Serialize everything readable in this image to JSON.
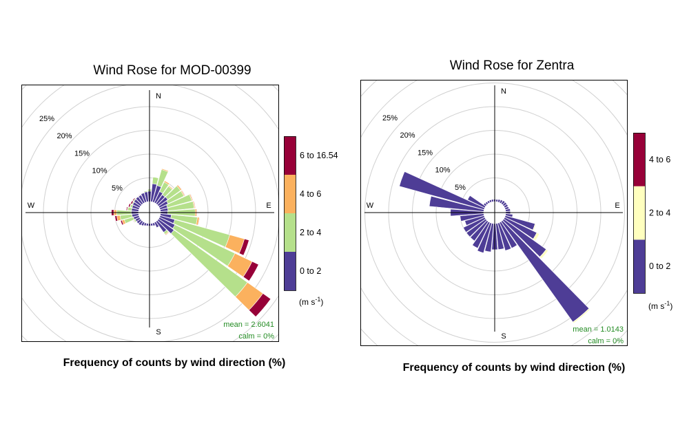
{
  "chart_data": [
    {
      "type": "windrose",
      "title": "Wind Rose for MOD-00399",
      "xlabel": "Frequency of counts by wind direction (%)",
      "compass": [
        "N",
        "E",
        "S",
        "W"
      ],
      "grid_labels": [
        "5%",
        "10%",
        "15%",
        "20%",
        "25%"
      ],
      "grid_values": [
        5,
        10,
        15,
        20,
        25,
        30,
        35
      ],
      "units": "(m s",
      "units_exp": "-1",
      "units_close": ")",
      "mean_text": "mean = 2.6041",
      "calm_text": "calm = 0%",
      "legend": {
        "bins": [
          "0 to 2",
          "2 to 4",
          "4 to 6",
          "6 to 16.54"
        ],
        "colors": [
          "#4e3d96",
          "#b5e08b",
          "#fbb15e",
          "#970038"
        ]
      },
      "directions": [
        0,
        10,
        20,
        30,
        40,
        50,
        60,
        70,
        80,
        90,
        100,
        110,
        120,
        130,
        140,
        150,
        160,
        170,
        180,
        190,
        200,
        210,
        220,
        230,
        240,
        250,
        260,
        270,
        280,
        290,
        300,
        310,
        320,
        330,
        340,
        350
      ],
      "series": [
        {
          "name": "0 to 2",
          "values": [
            2.2,
            3.8,
            3.6,
            2.6,
            2.3,
            2.4,
            2.0,
            1.6,
            1.6,
            1.5,
            2.3,
            3.2,
            3.6,
            4.0,
            2.8,
            1.2,
            0.6,
            0.5,
            0.5,
            0.5,
            0.6,
            0.8,
            1.0,
            1.0,
            1.0,
            1.2,
            1.4,
            1.5,
            1.5,
            1.5,
            1.6,
            1.7,
            1.8,
            1.8,
            2.0,
            2.1
          ]
        },
        {
          "name": "2 to 4",
          "values": [
            0.4,
            1.4,
            3.5,
            2.2,
            2.2,
            3.3,
            3.7,
            5.3,
            5.5,
            5.8,
            5.5,
            12.0,
            14.0,
            19.0,
            0.5,
            0.1,
            0.0,
            0.0,
            0.0,
            0.0,
            0.0,
            0.0,
            0.0,
            0.0,
            0.3,
            2.0,
            2.5,
            3.1,
            0.8,
            0.4,
            0.2,
            0.2,
            0.1,
            0.1,
            0.1,
            0.2
          ]
        },
        {
          "name": "4 to 6",
          "values": [
            0.0,
            0.0,
            0.2,
            0.3,
            0.2,
            0.3,
            0.2,
            0.2,
            0.2,
            0.3,
            0.4,
            3.2,
            4.0,
            4.0,
            0.2,
            0.0,
            0.0,
            0.0,
            0.0,
            0.0,
            0.0,
            0.0,
            0.0,
            0.0,
            0.1,
            0.5,
            0.7,
            0.6,
            0.1,
            0.1,
            0.0,
            0.0,
            0.0,
            0.0,
            0.0,
            0.0
          ]
        },
        {
          "name": "6 to 16.54",
          "values": [
            0.0,
            0.0,
            0.0,
            0.0,
            0.0,
            0.1,
            0.1,
            0.1,
            0.1,
            0.1,
            0.1,
            1.0,
            1.5,
            2.0,
            0.1,
            0.0,
            0.0,
            0.0,
            0.0,
            0.0,
            0.0,
            0.0,
            0.0,
            0.0,
            0.1,
            0.3,
            0.4,
            0.5,
            0.2,
            0.3,
            0.3,
            0.2,
            0.1,
            0.1,
            0.0,
            0.0
          ]
        }
      ]
    },
    {
      "type": "windrose",
      "title": "Wind Rose for Zentra",
      "xlabel": "Frequency of counts by wind direction (%)",
      "compass": [
        "N",
        "E",
        "S",
        "W"
      ],
      "grid_labels": [
        "5%",
        "10%",
        "15%",
        "20%",
        "25%"
      ],
      "grid_values": [
        5,
        10,
        15,
        20,
        25,
        30,
        35
      ],
      "units": "(m s",
      "units_exp": "-1",
      "units_close": ")",
      "mean_text": "mean = 1.0143",
      "calm_text": "calm = 0%",
      "legend": {
        "bins": [
          "0 to 2",
          "2 to 4",
          "4 to 6"
        ],
        "colors": [
          "#4e3d96",
          "#ffffbf",
          "#970038"
        ]
      },
      "directions": [
        0,
        10,
        20,
        30,
        40,
        50,
        60,
        70,
        80,
        90,
        100,
        110,
        120,
        130,
        140,
        150,
        160,
        170,
        180,
        190,
        200,
        210,
        220,
        230,
        240,
        250,
        260,
        270,
        280,
        290,
        300,
        310,
        320,
        330,
        340,
        350
      ],
      "series": [
        {
          "name": "0 to 2",
          "values": [
            0.5,
            0.5,
            0.6,
            0.7,
            0.8,
            0.8,
            0.8,
            0.8,
            1.0,
            1.0,
            1.5,
            6.5,
            7.5,
            11.0,
            26.0,
            6.0,
            6.0,
            5.5,
            5.5,
            6.0,
            6.5,
            6.0,
            5.0,
            5.0,
            5.0,
            4.2,
            5.0,
            7.0,
            11.5,
            18.5,
            4.0,
            0.6,
            0.5,
            0.5,
            0.5,
            0.5
          ]
        },
        {
          "name": "2 to 4",
          "values": [
            0,
            0,
            0,
            0,
            0,
            0,
            0,
            0,
            0,
            0,
            0,
            0.2,
            0.6,
            0.5,
            0.3,
            0,
            0,
            0,
            0,
            0,
            0,
            0,
            0,
            0,
            0,
            0,
            0,
            0,
            0,
            0,
            0,
            0,
            0,
            0,
            0,
            0
          ]
        },
        {
          "name": "4 to 6",
          "values": [
            0,
            0,
            0,
            0,
            0,
            0,
            0,
            0,
            0,
            0,
            0,
            0,
            0,
            0,
            0,
            0,
            0,
            0,
            0,
            0,
            0,
            0,
            0,
            0,
            0,
            0,
            0,
            0,
            0,
            0,
            0,
            0,
            0,
            0,
            0,
            0
          ]
        }
      ]
    }
  ]
}
